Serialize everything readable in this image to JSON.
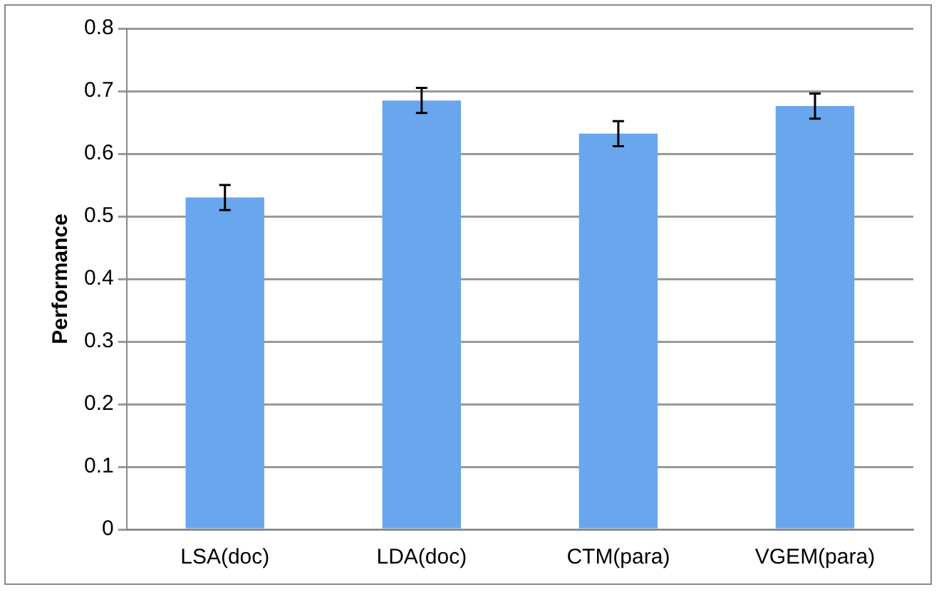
{
  "chart_data": {
    "type": "bar",
    "ylabel": "Performance",
    "categories": [
      "LSA(doc)",
      "LDA(doc)",
      "CTM(para)",
      "VGEM(para)"
    ],
    "values": [
      0.53,
      0.685,
      0.632,
      0.676
    ],
    "errors": [
      0.02,
      0.02,
      0.02,
      0.02
    ],
    "color": "#6aa6ee",
    "ylim": [
      0,
      0.8
    ],
    "yticks": [
      0,
      0.1,
      0.2,
      0.3,
      0.4,
      0.5,
      0.6,
      0.7,
      0.8
    ],
    "grid": "y",
    "legend": false
  }
}
